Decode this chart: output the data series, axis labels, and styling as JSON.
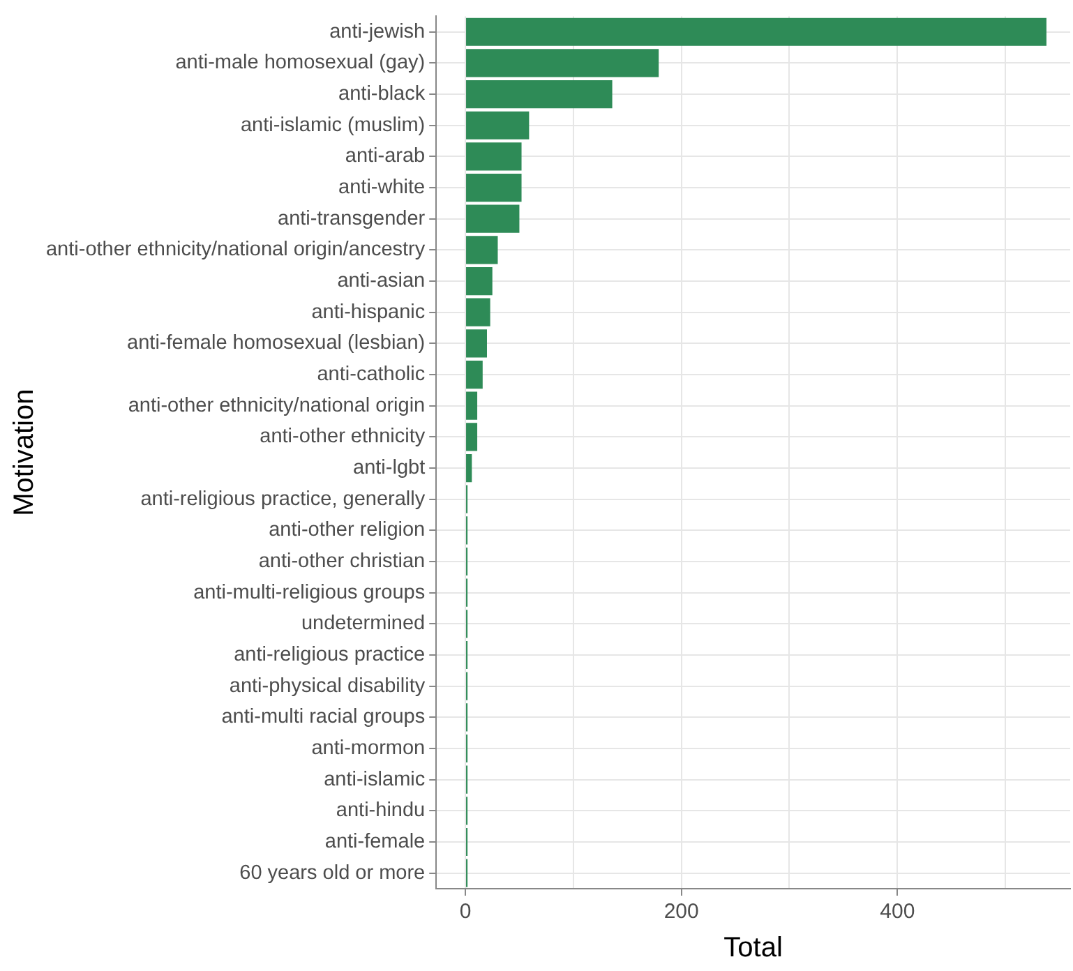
{
  "chart_data": {
    "type": "bar",
    "orientation": "horizontal",
    "xlabel": "Total",
    "ylabel": "Motivation",
    "categories": [
      "anti-jewish",
      "anti-male homosexual (gay)",
      "anti-black",
      "anti-islamic (muslim)",
      "anti-arab",
      "anti-white",
      "anti-transgender",
      "anti-other ethnicity/national origin/ancestry",
      "anti-asian",
      "anti-hispanic",
      "anti-female homosexual (lesbian)",
      "anti-catholic",
      "anti-other ethnicity/national origin",
      "anti-other ethnicity",
      "anti-lgbt",
      "anti-religious practice, generally",
      "anti-other religion",
      "anti-other christian",
      "anti-multi-religious groups",
      "undetermined",
      "anti-religious practice",
      "anti-physical disability",
      "anti-multi racial groups",
      "anti-mormon",
      "anti-islamic",
      "anti-hindu",
      "anti-female",
      "60 years old or more"
    ],
    "values": [
      538,
      179,
      136,
      59,
      52,
      52,
      50,
      30,
      25,
      23,
      20,
      16,
      11,
      11,
      6,
      2,
      2,
      2,
      2,
      2,
      2,
      2,
      2,
      2,
      2,
      2,
      2,
      2
    ],
    "color": "#2e8b57",
    "xlim": [
      -27,
      560
    ],
    "xticks": [
      0,
      {
        "value": 100,
        "label": null
      },
      200,
      {
        "value": 300,
        "label": null
      },
      400,
      {
        "value": 500,
        "label": null
      }
    ],
    "grid": true
  }
}
